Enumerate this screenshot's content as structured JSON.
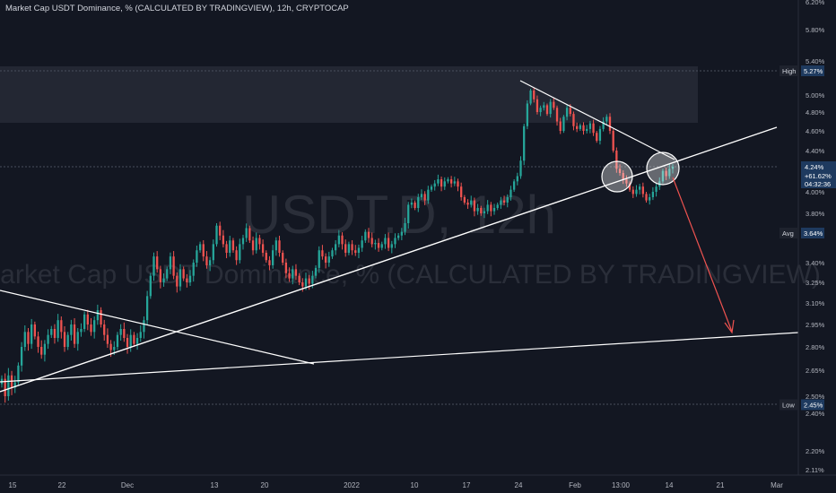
{
  "header": {
    "title": "Market Cap USDT Dominance, % (CALCULATED BY TRADINGVIEW), 12h, CRYPTOCAP"
  },
  "watermark": {
    "symbol": "USDT.D, 12h",
    "description": "Market Cap USDT Dominance, % (CALCULATED BY TRADINGVIEW)"
  },
  "colors": {
    "background": "#131722",
    "up": "#26a69a",
    "down": "#ef5350",
    "axis_text": "#b2b5be",
    "lines": "#ffffff",
    "arrow": "#ef5350",
    "label_box": "#1e3a5f"
  },
  "chart_data": {
    "type": "candlestick",
    "title": "Market Cap USDT Dominance, % (CALCULATED BY TRADINGVIEW), 12h, CRYPTOCAP",
    "y_unit": "%",
    "ylim": [
      2.07,
      6.3
    ],
    "y_ticks": [
      "6.20%",
      "5.80%",
      "5.40%",
      "5.00%",
      "4.80%",
      "4.60%",
      "4.40%",
      "4.00%",
      "3.80%",
      "3.40%",
      "3.25%",
      "3.10%",
      "2.95%",
      "2.80%",
      "2.65%",
      "2.50%",
      "2.40%",
      "2.20%",
      "2.11%"
    ],
    "x_ticks": [
      "15",
      "22",
      "Dec",
      "13",
      "20",
      "2022",
      "10",
      "17",
      "24",
      "Feb",
      "13:00",
      "14",
      "21",
      "Mar"
    ],
    "price_labels": [
      {
        "name": "High",
        "value": "5.27%"
      },
      {
        "name": "Avg",
        "value": "3.64%"
      },
      {
        "name": "Low",
        "value": "2.45%"
      }
    ],
    "current": {
      "value": "4.24%",
      "change": "+61.62%",
      "countdown": "04:32:36"
    },
    "candles_close": [
      2.6,
      2.5,
      2.62,
      2.55,
      2.58,
      2.68,
      2.8,
      2.9,
      2.82,
      2.95,
      2.87,
      2.8,
      2.75,
      2.82,
      2.88,
      2.92,
      2.86,
      2.98,
      2.9,
      2.8,
      2.88,
      2.95,
      2.82,
      2.9,
      2.92,
      3.02,
      2.95,
      2.9,
      2.98,
      3.05,
      2.95,
      2.88,
      2.82,
      2.78,
      2.8,
      2.88,
      2.92,
      2.86,
      2.8,
      2.88,
      2.82,
      2.86,
      2.9,
      2.98,
      3.15,
      3.3,
      3.45,
      3.35,
      3.25,
      3.28,
      3.35,
      3.45,
      3.3,
      3.22,
      3.35,
      3.28,
      3.25,
      3.3,
      3.4,
      3.5,
      3.55,
      3.45,
      3.38,
      3.42,
      3.55,
      3.7,
      3.62,
      3.55,
      3.48,
      3.58,
      3.5,
      3.42,
      3.55,
      3.6,
      3.68,
      3.58,
      3.5,
      3.6,
      3.55,
      3.48,
      3.42,
      3.38,
      3.5,
      3.58,
      3.48,
      3.4,
      3.32,
      3.28,
      3.35,
      3.3,
      3.25,
      3.22,
      3.28,
      3.24,
      3.3,
      3.36,
      3.5,
      3.45,
      3.4,
      3.45,
      3.5,
      3.55,
      3.62,
      3.55,
      3.48,
      3.55,
      3.5,
      3.48,
      3.52,
      3.58,
      3.65,
      3.6,
      3.55,
      3.56,
      3.52,
      3.55,
      3.6,
      3.52,
      3.55,
      3.6,
      3.62,
      3.65,
      3.72,
      3.88,
      3.9,
      3.85,
      3.95,
      3.98,
      3.92,
      4.02,
      4.05,
      4.08,
      4.12,
      4.05,
      4.1,
      4.12,
      4.08,
      4.1,
      4.05,
      3.95,
      3.9,
      3.88,
      3.92,
      3.82,
      3.85,
      3.8,
      3.82,
      3.88,
      3.82,
      3.85,
      3.88,
      3.92,
      3.9,
      3.95,
      4.02,
      4.1,
      4.15,
      4.3,
      4.65,
      4.9,
      5.05,
      4.95,
      4.8,
      4.85,
      4.88,
      4.78,
      4.92,
      4.85,
      4.7,
      4.6,
      4.75,
      4.85,
      4.78,
      4.65,
      4.62,
      4.66,
      4.6,
      4.62,
      4.68,
      4.58,
      4.5,
      4.62,
      4.7,
      4.75,
      4.6,
      4.4,
      4.22,
      4.18,
      4.12,
      4.08,
      4.02,
      3.98,
      4.02,
      4.05,
      3.98,
      3.92,
      3.95,
      4.0,
      4.05,
      4.1,
      4.2,
      4.15,
      4.22,
      4.24
    ]
  }
}
